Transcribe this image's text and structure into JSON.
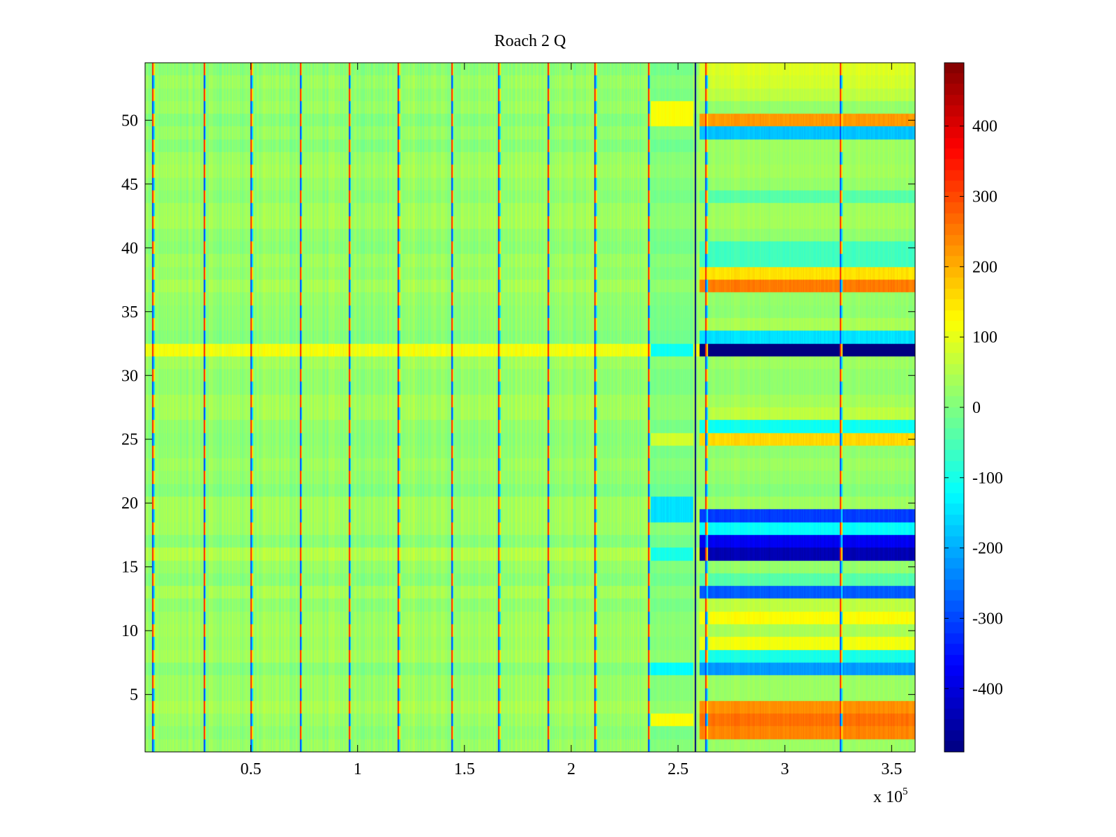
{
  "chart_data": {
    "type": "heatmap",
    "title": "Roach 2 Q",
    "xlabel": "",
    "ylabel": "",
    "x_multiplier_label": "x 10",
    "x_multiplier_exponent": "5",
    "xlim": [
      0.005,
      3.61
    ],
    "ylim": [
      0.5,
      54.5
    ],
    "xticks": [
      0.5,
      1,
      1.5,
      2,
      2.5,
      3,
      3.5
    ],
    "xtick_labels": [
      "0.5",
      "1",
      "1.5",
      "2",
      "2.5",
      "3",
      "3.5"
    ],
    "yticks": [
      5,
      10,
      15,
      20,
      25,
      30,
      35,
      40,
      45,
      50
    ],
    "ytick_labels": [
      "5",
      "10",
      "15",
      "20",
      "25",
      "30",
      "35",
      "40",
      "45",
      "50"
    ],
    "colormap": "jet",
    "clim": [
      -490,
      490
    ],
    "colorbar_ticks": [
      400,
      300,
      200,
      100,
      0,
      -100,
      -200,
      -300,
      -400
    ],
    "colorbar_labels": [
      "400",
      "300",
      "200",
      "100",
      "0",
      "-100",
      "-200",
      "-300",
      "-400"
    ],
    "n_rows": 54,
    "baseline_value": 20,
    "spike_columns_x": [
      0.04,
      0.28,
      0.5,
      0.73,
      0.96,
      1.19,
      1.44,
      1.66,
      1.89,
      2.11,
      2.36,
      2.63,
      3.26
    ],
    "transition_x": 2.58,
    "right_block_x_range": [
      2.6,
      3.61
    ],
    "right_block_row_values": {
      "2": 240,
      "3": 260,
      "4": 230,
      "7": -220,
      "8": -100,
      "9": 110,
      "10": 40,
      "11": 120,
      "12": 60,
      "13": -280,
      "14": -40,
      "15": 20,
      "16": -440,
      "17": -380,
      "18": -120,
      "19": -310,
      "20": 30,
      "25": 160,
      "26": -110,
      "27": 60,
      "31": 30,
      "32": -500,
      "33": -150,
      "34": 40,
      "37": 250,
      "38": 150,
      "39": -60,
      "40": -60,
      "44": -40,
      "48": 30,
      "49": -180,
      "50": 220,
      "51": 20,
      "52": 60,
      "53": 80,
      "54": 90
    },
    "left_block_row_values": {
      "32": 110,
      "16": 50,
      "13": 40
    },
    "mid_block_x_range": [
      2.37,
      2.57
    ],
    "mid_block_row_values": {
      "3": 120,
      "7": -120,
      "16": -100,
      "19": -150,
      "20": -150,
      "25": 80,
      "50": 120,
      "51": 120,
      "32": -110
    }
  }
}
